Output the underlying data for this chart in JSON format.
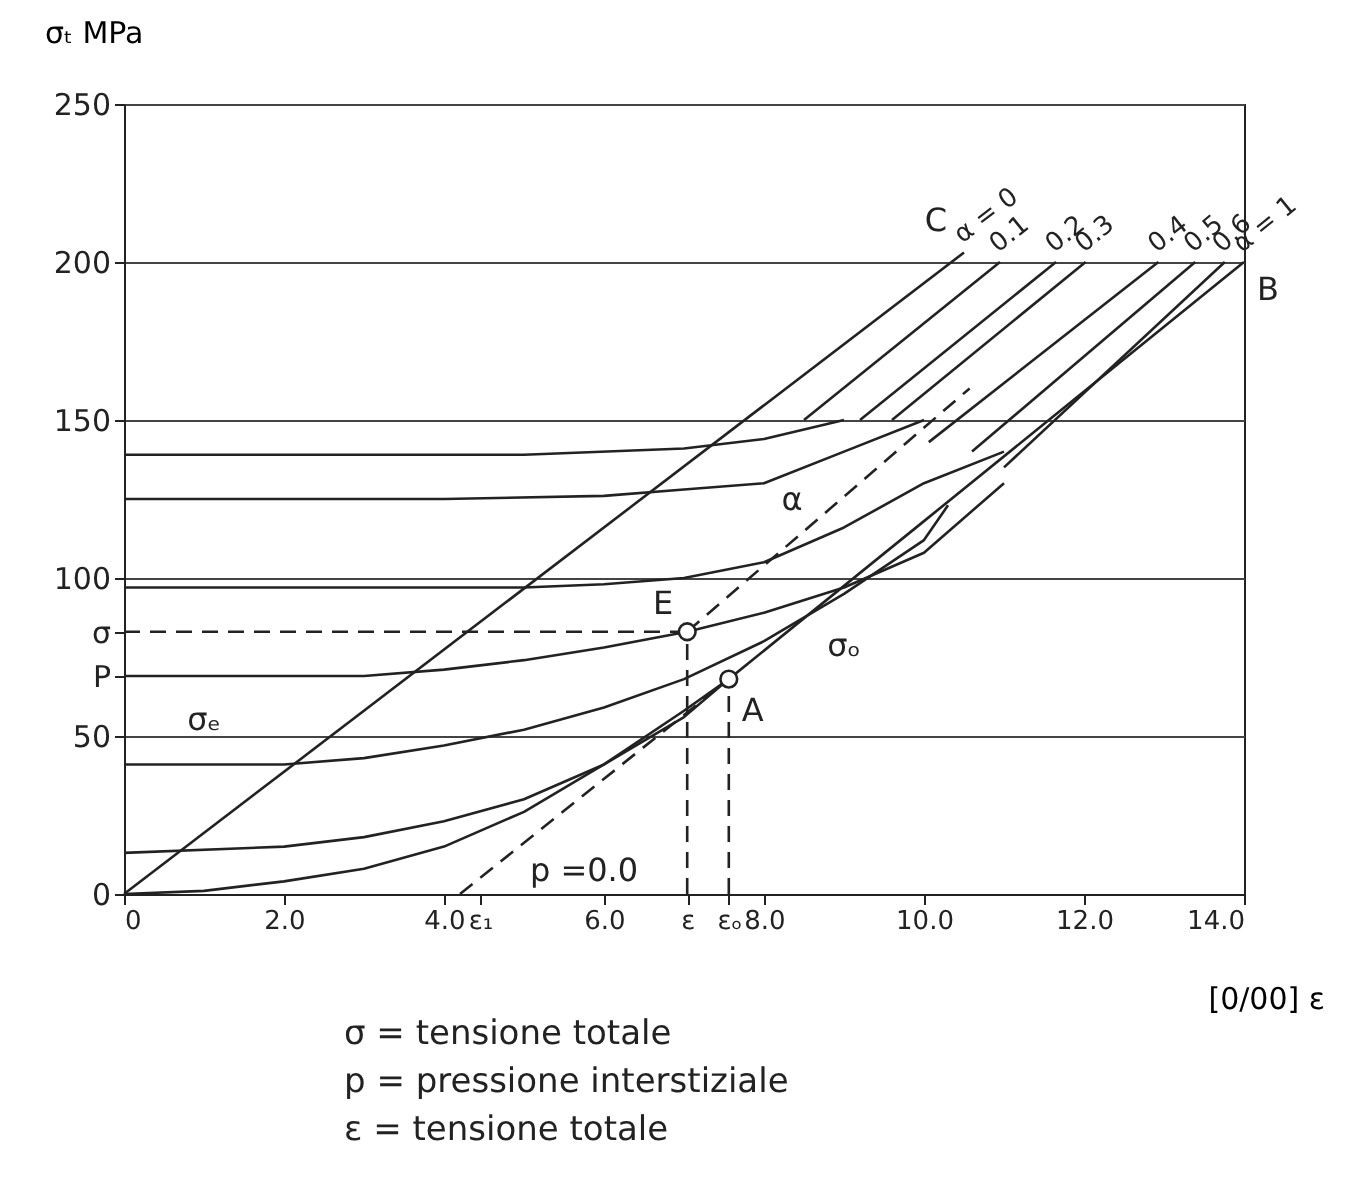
{
  "chart_data": {
    "type": "line",
    "xlabel": "[0/00] ε",
    "ylabel": "σₜ MPa",
    "xlim": [
      0,
      14
    ],
    "ylim": [
      0,
      250
    ],
    "xticks": [
      0,
      {
        "value": 2,
        "label": "2.0"
      },
      {
        "value": 4,
        "label": "4.0"
      },
      {
        "value": 4.45,
        "label": "ε₁"
      },
      {
        "value": 6,
        "label": "6.0"
      },
      {
        "value": 7.04,
        "label": "ε"
      },
      {
        "value": 7.56,
        "label": "εₒ"
      },
      {
        "value": 8,
        "label": "8.0"
      },
      {
        "value": 10,
        "label": "10.0"
      },
      {
        "value": 12,
        "label": "12.0"
      },
      {
        "value": 14,
        "label": "14.0"
      }
    ],
    "yticks": [
      0,
      50,
      {
        "value": 69,
        "label": "P"
      },
      {
        "value": 83,
        "label": "σ"
      },
      100,
      150,
      200,
      250
    ],
    "grid": true,
    "legend": false,
    "series": [
      {
        "name": "α = 0",
        "color": "#222222",
        "x": [
          0,
          10.5
        ],
        "values": [
          0,
          203
        ]
      },
      {
        "name": "α = 1",
        "color": "#222222",
        "x": [
          0,
          1,
          2,
          3,
          4,
          5,
          6,
          7,
          7.56,
          10,
          12,
          14
        ],
        "values": [
          0,
          1,
          4,
          8,
          15,
          26,
          41,
          58,
          68,
          118,
          159,
          200
        ]
      },
      {
        "name": "0.1",
        "color": "#222222",
        "x": [
          8.5,
          10.95
        ],
        "values": [
          150,
          200
        ]
      },
      {
        "name": "0.2",
        "color": "#222222",
        "x": [
          9.2,
          11.65
        ],
        "values": [
          150,
          200
        ]
      },
      {
        "name": "0.3",
        "color": "#222222",
        "x": [
          9.6,
          12.02
        ],
        "values": [
          150,
          200
        ]
      },
      {
        "name": "0.4",
        "color": "#222222",
        "x": [
          10.06,
          12.93
        ],
        "values": [
          143,
          200
        ]
      },
      {
        "name": "0.5",
        "color": "#222222",
        "x": [
          10.6,
          13.39
        ],
        "values": [
          140,
          200
        ]
      },
      {
        "name": "0.6",
        "color": "#222222",
        "x": [
          11.0,
          13.76
        ],
        "values": [
          135,
          200
        ]
      },
      {
        "color": "#222222",
        "x": [
          0,
          2,
          3,
          4,
          5,
          6,
          7,
          7.56
        ],
        "values": [
          13,
          15,
          18,
          23,
          30,
          41,
          56,
          68
        ]
      },
      {
        "color": "#222222",
        "x": [
          0,
          2,
          3,
          4,
          5,
          6,
          7,
          8,
          9,
          10,
          10.3
        ],
        "values": [
          41,
          41,
          43,
          47,
          52,
          59,
          68,
          80,
          95,
          112,
          123
        ]
      },
      {
        "color": "#222222",
        "x": [
          0,
          3,
          4,
          5,
          6,
          7.04,
          8,
          9,
          10,
          11
        ],
        "values": [
          69,
          69,
          71,
          74,
          78,
          83,
          89,
          97,
          108,
          130
        ]
      },
      {
        "color": "#222222",
        "x": [
          0,
          4,
          5,
          6,
          7,
          8,
          9,
          10,
          11
        ],
        "values": [
          97,
          97,
          97,
          98,
          100,
          105,
          116,
          130,
          140
        ]
      },
      {
        "color": "#222222",
        "x": [
          0,
          4,
          6,
          7,
          8,
          9,
          10
        ],
        "values": [
          125,
          125,
          126,
          128,
          130,
          140,
          150
        ]
      },
      {
        "color": "#222222",
        "x": [
          0,
          5,
          7,
          8,
          9
        ],
        "values": [
          139,
          139,
          141,
          144,
          150
        ]
      },
      {
        "line_style": "dashed",
        "color": "#222222",
        "x": [
          4.2,
          7.56
        ],
        "values": [
          0,
          68
        ]
      },
      {
        "line_style": "dashed",
        "color": "#222222",
        "x": [
          7.04,
          10.57
        ],
        "values": [
          83,
          160
        ]
      },
      {
        "line_style": "dashed",
        "color": "#222222",
        "x": [
          0,
          7.04
        ],
        "values": [
          83,
          83
        ]
      },
      {
        "line_style": "dashed",
        "color": "#222222",
        "x": [
          7.04,
          7.04
        ],
        "values": [
          0,
          83
        ]
      },
      {
        "line_style": "dashed",
        "color": "#222222",
        "x": [
          7.56,
          7.56
        ],
        "values": [
          0,
          68
        ]
      },
      {
        "type": "scatter",
        "marker": "circle",
        "color": "#222222",
        "x": [
          7.04,
          7.56
        ],
        "values": [
          83,
          68
        ]
      }
    ],
    "annotations": [
      {
        "text": "C",
        "x": 10.5,
        "y": 203
      },
      {
        "text": "B",
        "x": 14,
        "y": 200
      },
      {
        "text": "E",
        "x": 7.04,
        "y": 83
      },
      {
        "text": "A",
        "x": 7.56,
        "y": 68
      },
      {
        "text": "α",
        "x": 8.6,
        "y": 117
      },
      {
        "text": "p =0.0",
        "x": 5.0,
        "y": 16.2
      },
      {
        "text": "σₑ",
        "x": 1.0,
        "y": 69
      },
      {
        "text": "σₒ",
        "x": 9,
        "y": 97.5
      },
      "σ = tensione totale",
      "p = pressione interstiziale",
      "ε = tensione totale"
    ]
  }
}
